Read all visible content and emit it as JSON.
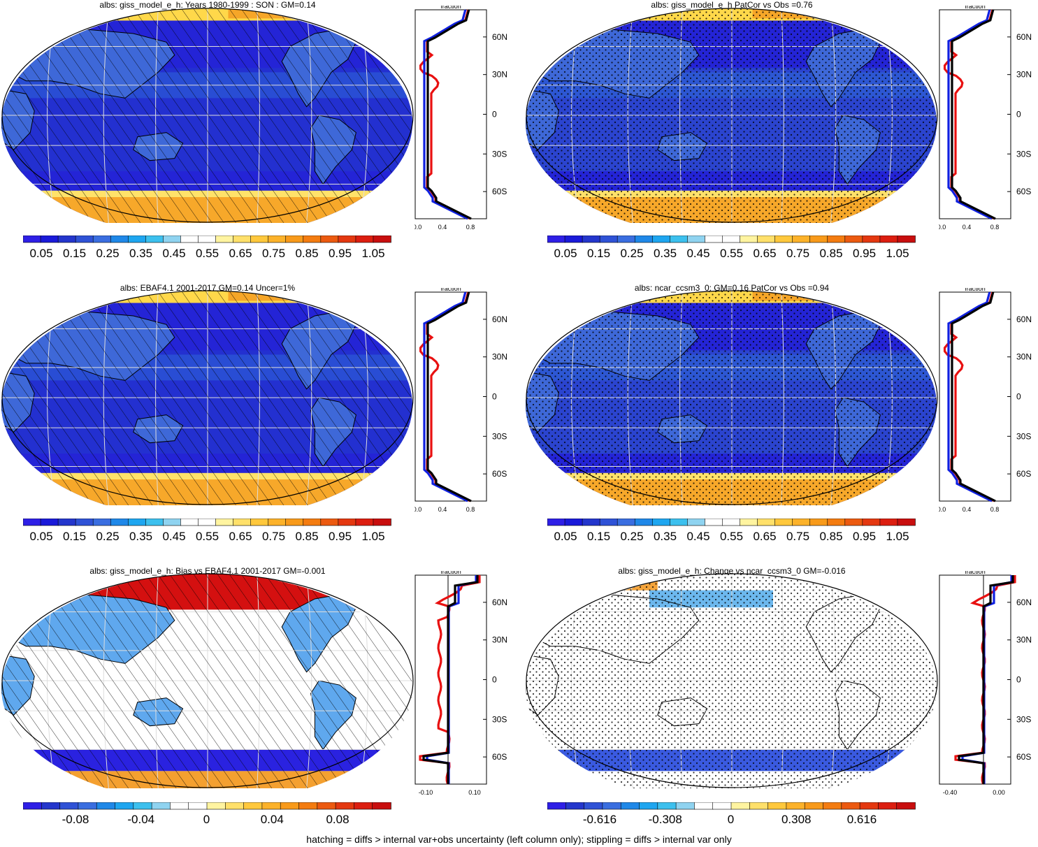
{
  "panels": [
    {
      "title": "albs: giss_model_e_h: Years 1980-1999 : SON : GM=0.14",
      "map": {
        "type": "abs",
        "pattern": "hatch"
      },
      "profile": {
        "xlabel": "fraction",
        "xticks": [
          "0.0",
          "0.4",
          "0.8"
        ],
        "yticks": [
          "60N",
          "30N",
          "0",
          "30S",
          "60S"
        ]
      },
      "colorbar": {
        "labels": [
          "0.05",
          "0.15",
          "0.25",
          "0.35",
          "0.45",
          "0.55",
          "0.65",
          "0.75",
          "0.85",
          "0.95",
          "1.05"
        ]
      }
    },
    {
      "title": "albs: giss_model_e_h PatCor vs Obs =0.76",
      "map": {
        "type": "abs",
        "pattern": "stipple"
      },
      "profile": {
        "xlabel": "fraction",
        "xticks": [
          "0.0",
          "0.4",
          "0.8"
        ],
        "yticks": [
          "60N",
          "30N",
          "0",
          "30S",
          "60S"
        ]
      },
      "colorbar": {
        "labels": [
          "0.05",
          "0.15",
          "0.25",
          "0.35",
          "0.45",
          "0.55",
          "0.65",
          "0.75",
          "0.85",
          "0.95",
          "1.05"
        ]
      }
    },
    {
      "title": "albs: EBAF4.1 2001-2017 GM=0.14 Uncer=1%",
      "map": {
        "type": "abs",
        "pattern": "hatch"
      },
      "profile": {
        "xlabel": "fraction",
        "xticks": [
          "0.0",
          "0.4",
          "0.8"
        ],
        "yticks": [
          "60N",
          "30N",
          "0",
          "30S",
          "60S"
        ]
      },
      "colorbar": {
        "labels": [
          "0.05",
          "0.15",
          "0.25",
          "0.35",
          "0.45",
          "0.55",
          "0.65",
          "0.75",
          "0.85",
          "0.95",
          "1.05"
        ]
      }
    },
    {
      "title": "albs: ncar_ccsm3_0: GM=0.16 PatCor vs Obs =0.94",
      "map": {
        "type": "abs",
        "pattern": "stipple"
      },
      "profile": {
        "xlabel": "fraction",
        "xticks": [
          "0.0",
          "0.4",
          "0.8"
        ],
        "yticks": [
          "60N",
          "30N",
          "0",
          "30S",
          "60S"
        ]
      },
      "colorbar": {
        "labels": [
          "0.05",
          "0.15",
          "0.25",
          "0.35",
          "0.45",
          "0.55",
          "0.65",
          "0.75",
          "0.85",
          "0.95",
          "1.05"
        ]
      }
    },
    {
      "title": "albs: giss_model_e_h: Bias vs EBAF4.1 2001-2017  GM=-0.001",
      "map": {
        "type": "diff",
        "pattern": "hatch"
      },
      "profile": {
        "xlabel": "fraction",
        "xticks": [
          "-0.10",
          "0.10"
        ],
        "yticks": [
          "60N",
          "30N",
          "0",
          "30S",
          "60S"
        ]
      },
      "colorbar": {
        "labels": [
          "-0.08",
          "-0.04",
          "0",
          "0.04",
          "0.08"
        ]
      }
    },
    {
      "title": "albs: giss_model_e_h: Change vs ncar_ccsm3_0 GM=-0.016",
      "map": {
        "type": "diff",
        "pattern": "stipple"
      },
      "profile": {
        "xlabel": "fraction",
        "xticks": [
          "-0.40",
          "0.00"
        ],
        "yticks": [
          "60N",
          "30N",
          "0",
          "30S",
          "60S"
        ]
      },
      "colorbar": {
        "labels": [
          "-0.616",
          "-0.308",
          "0",
          "0.308",
          "0.616"
        ]
      }
    }
  ],
  "colors": {
    "abs_scale": [
      "#2e1fe6",
      "#1a1ad9",
      "#2436cc",
      "#2f52d6",
      "#3a6ee0",
      "#1f88e8",
      "#1ea6f0",
      "#3cc0ee",
      "#8fd3f0",
      "#ffffff",
      "#ffffff",
      "#fff4a0",
      "#ffe06a",
      "#ffc83c",
      "#fcb22a",
      "#f89a1a",
      "#f47c10",
      "#ec5a10",
      "#e43810",
      "#dc1e10",
      "#c80e0e"
    ],
    "diff_scale": [
      "#2e1fe6",
      "#2436cc",
      "#2f52d6",
      "#3a6ee0",
      "#1f88e8",
      "#1ea6f0",
      "#3cc0ee",
      "#8fd3f0",
      "#ffffff",
      "#ffffff",
      "#fff4a0",
      "#ffe06a",
      "#ffc83c",
      "#fcb22a",
      "#f89a1a",
      "#f47c10",
      "#ec5a10",
      "#e43810",
      "#dc1e10",
      "#c80e0e"
    ],
    "line_model": "#e81010",
    "line_obs": "#1020e0",
    "line_ref": "#000000"
  },
  "footer": "hatching = diffs > internal var+obs uncertainty (left column only); stippling = diffs > internal var only"
}
